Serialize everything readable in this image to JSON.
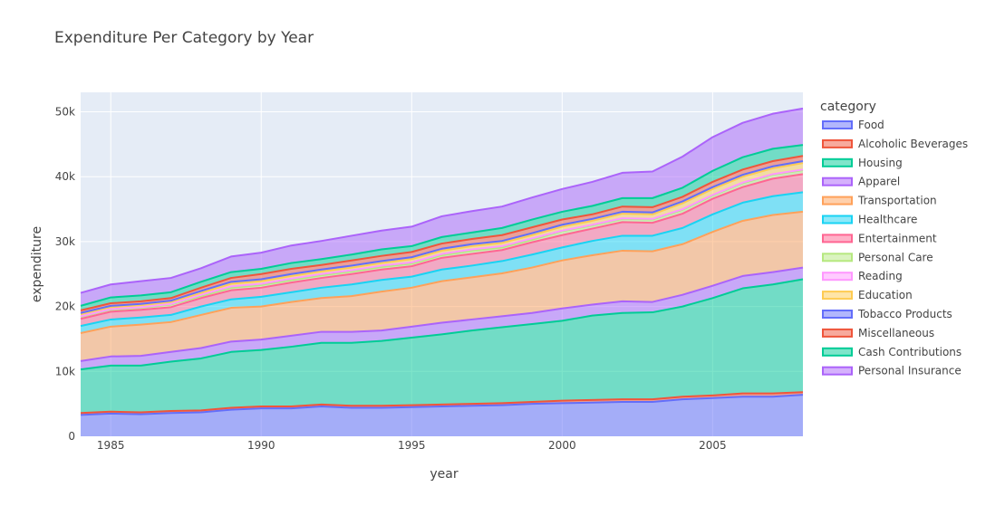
{
  "chart_data": {
    "type": "area",
    "title": "Expenditure Per Category by Year",
    "xlabel": "year",
    "ylabel": "expenditure",
    "legend_title": "category",
    "legend_position": "right",
    "stacked": true,
    "grid": true,
    "xlim": [
      1984,
      2008
    ],
    "ylim": [
      0,
      53000
    ],
    "x_ticks": [
      1985,
      1990,
      1995,
      2000,
      2005
    ],
    "y_ticks": [
      0,
      10000,
      20000,
      30000,
      40000,
      50000
    ],
    "y_tick_labels": [
      "0",
      "10k",
      "20k",
      "30k",
      "40k",
      "50k"
    ],
    "x": [
      1984,
      1985,
      1986,
      1987,
      1988,
      1989,
      1990,
      1991,
      1992,
      1993,
      1994,
      1995,
      1996,
      1997,
      1998,
      1999,
      2000,
      2001,
      2002,
      2003,
      2004,
      2005,
      2006,
      2007,
      2008
    ],
    "series": [
      {
        "name": "Food",
        "color": "#636efa",
        "values": [
          3300,
          3500,
          3400,
          3600,
          3700,
          4100,
          4300,
          4300,
          4600,
          4400,
          4400,
          4500,
          4600,
          4700,
          4800,
          5000,
          5100,
          5200,
          5300,
          5300,
          5700,
          5900,
          6100,
          6100,
          6400
        ]
      },
      {
        "name": "Alcoholic Beverages",
        "color": "#ef553b",
        "values": [
          300,
          300,
          300,
          300,
          300,
          300,
          300,
          300,
          300,
          300,
          300,
          300,
          300,
          300,
          300,
          300,
          400,
          400,
          400,
          400,
          400,
          400,
          500,
          500,
          400
        ]
      },
      {
        "name": "Housing",
        "color": "#00cc96",
        "values": [
          6700,
          7100,
          7200,
          7600,
          8000,
          8600,
          8700,
          9200,
          9500,
          9700,
          10000,
          10400,
          10800,
          11300,
          11700,
          12000,
          12300,
          13000,
          13300,
          13400,
          13900,
          15000,
          16200,
          16800,
          17400
        ]
      },
      {
        "name": "Apparel",
        "color": "#ab63fa",
        "values": [
          1300,
          1400,
          1500,
          1500,
          1600,
          1600,
          1600,
          1700,
          1700,
          1700,
          1600,
          1700,
          1800,
          1700,
          1700,
          1700,
          1900,
          1700,
          1800,
          1600,
          1800,
          1900,
          1900,
          1900,
          1800
        ]
      },
      {
        "name": "Transportation",
        "color": "#ffa15a",
        "values": [
          4300,
          4600,
          4800,
          4600,
          5100,
          5200,
          5100,
          5200,
          5200,
          5500,
          6000,
          6000,
          6400,
          6500,
          6600,
          7000,
          7400,
          7600,
          7800,
          7800,
          7800,
          8300,
          8500,
          8800,
          8600
        ]
      },
      {
        "name": "Healthcare",
        "color": "#19d3f3",
        "values": [
          1100,
          1100,
          1100,
          1100,
          1300,
          1300,
          1500,
          1500,
          1600,
          1800,
          1800,
          1700,
          1800,
          1800,
          1900,
          2000,
          2000,
          2200,
          2300,
          2400,
          2500,
          2700,
          2800,
          2900,
          3000
        ]
      },
      {
        "name": "Entertainment",
        "color": "#ff6692",
        "values": [
          1100,
          1200,
          1200,
          1200,
          1300,
          1400,
          1400,
          1500,
          1500,
          1600,
          1600,
          1600,
          1800,
          1800,
          1700,
          1900,
          1900,
          1900,
          2100,
          2000,
          2200,
          2400,
          2400,
          2700,
          2800
        ]
      },
      {
        "name": "Personal Care",
        "color": "#b6e880",
        "values": [
          300,
          300,
          300,
          400,
          300,
          400,
          400,
          400,
          400,
          400,
          400,
          400,
          400,
          500,
          400,
          400,
          600,
          500,
          500,
          500,
          600,
          500,
          600,
          600,
          600
        ]
      },
      {
        "name": "Reading",
        "color": "#ff97ff",
        "values": [
          100,
          100,
          100,
          100,
          200,
          200,
          200,
          200,
          200,
          200,
          200,
          200,
          200,
          200,
          200,
          200,
          100,
          100,
          100,
          100,
          100,
          100,
          100,
          100,
          100
        ]
      },
      {
        "name": "Education",
        "color": "#fecb52",
        "values": [
          300,
          300,
          300,
          300,
          300,
          400,
          400,
          400,
          400,
          400,
          400,
          500,
          500,
          500,
          500,
          500,
          600,
          600,
          700,
          700,
          900,
          900,
          900,
          900,
          1000
        ]
      },
      {
        "name": "Tobacco Products",
        "color": "#636efa",
        "values": [
          200,
          200,
          200,
          200,
          300,
          300,
          300,
          300,
          300,
          300,
          300,
          300,
          300,
          300,
          300,
          300,
          300,
          300,
          300,
          300,
          300,
          300,
          300,
          300,
          300
        ]
      },
      {
        "name": "Miscellaneous",
        "color": "#ef553b",
        "values": [
          400,
          400,
          400,
          400,
          500,
          600,
          800,
          800,
          700,
          800,
          800,
          800,
          800,
          800,
          900,
          900,
          800,
          700,
          800,
          800,
          700,
          800,
          800,
          800,
          800
        ]
      },
      {
        "name": "Cash Contributions",
        "color": "#00cc96",
        "values": [
          700,
          900,
          900,
          900,
          900,
          900,
          800,
          900,
          900,
          900,
          1000,
          900,
          1000,
          1000,
          1100,
          1200,
          1200,
          1300,
          1300,
          1400,
          1400,
          1700,
          1900,
          1900,
          1700
        ]
      },
      {
        "name": "Personal Insurance",
        "color": "#ab63fa",
        "values": [
          2000,
          2000,
          2200,
          2200,
          2100,
          2400,
          2500,
          2700,
          2800,
          2900,
          2900,
          3000,
          3200,
          3300,
          3300,
          3400,
          3500,
          3700,
          3900,
          4100,
          4800,
          5200,
          5300,
          5400,
          5600
        ]
      }
    ]
  }
}
